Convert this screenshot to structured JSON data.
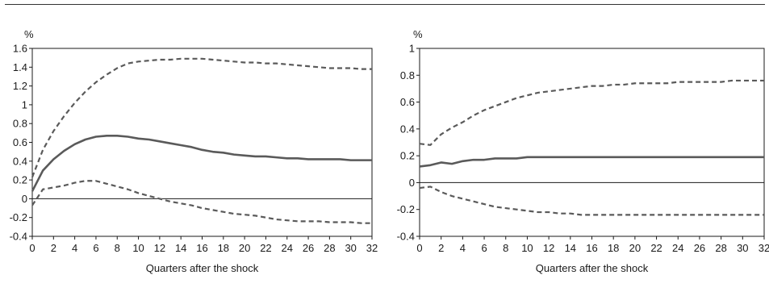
{
  "chart_data": [
    {
      "type": "line",
      "title": "",
      "unit": "%",
      "xlabel": "Quarters after the shock",
      "ylabel": "",
      "xlim": [
        0,
        32
      ],
      "ylim": [
        -0.4,
        1.6
      ],
      "xticks": [
        0,
        2,
        4,
        6,
        8,
        10,
        12,
        14,
        16,
        18,
        20,
        22,
        24,
        26,
        28,
        30,
        32
      ],
      "yticks": [
        -0.4,
        -0.2,
        0,
        0.2,
        0.4,
        0.6,
        0.8,
        1,
        1.2,
        1.4,
        1.6
      ],
      "ytick_labels": [
        "-0.4",
        "-0.2",
        "0",
        "0.2",
        "0.4",
        "0.6",
        "0.8",
        "1",
        "1.2",
        "1.4",
        "1.6"
      ],
      "zero_line": true,
      "grid": false,
      "x": [
        0,
        1,
        2,
        3,
        4,
        5,
        6,
        7,
        8,
        9,
        10,
        11,
        12,
        13,
        14,
        15,
        16,
        17,
        18,
        19,
        20,
        21,
        22,
        23,
        24,
        25,
        26,
        27,
        28,
        29,
        30,
        31,
        32
      ],
      "series": [
        {
          "style": "dashed",
          "values": [
            0.23,
            0.52,
            0.72,
            0.88,
            1.02,
            1.14,
            1.24,
            1.32,
            1.39,
            1.44,
            1.46,
            1.47,
            1.48,
            1.48,
            1.49,
            1.49,
            1.49,
            1.48,
            1.47,
            1.46,
            1.45,
            1.45,
            1.44,
            1.44,
            1.43,
            1.42,
            1.41,
            1.4,
            1.39,
            1.39,
            1.39,
            1.38,
            1.38
          ]
        },
        {
          "style": "solid",
          "values": [
            0.08,
            0.3,
            0.42,
            0.51,
            0.58,
            0.63,
            0.66,
            0.67,
            0.67,
            0.66,
            0.64,
            0.63,
            0.61,
            0.59,
            0.57,
            0.55,
            0.52,
            0.5,
            0.49,
            0.47,
            0.46,
            0.45,
            0.45,
            0.44,
            0.43,
            0.43,
            0.42,
            0.42,
            0.42,
            0.42,
            0.41,
            0.41,
            0.41
          ]
        },
        {
          "style": "dashed",
          "values": [
            -0.07,
            0.1,
            0.12,
            0.14,
            0.17,
            0.19,
            0.19,
            0.16,
            0.13,
            0.1,
            0.06,
            0.03,
            0.0,
            -0.03,
            -0.05,
            -0.07,
            -0.1,
            -0.12,
            -0.14,
            -0.16,
            -0.17,
            -0.18,
            -0.2,
            -0.22,
            -0.23,
            -0.24,
            -0.24,
            -0.24,
            -0.25,
            -0.25,
            -0.25,
            -0.26,
            -0.26
          ]
        }
      ]
    },
    {
      "type": "line",
      "title": "",
      "unit": "%",
      "xlabel": "Quarters after the shock",
      "ylabel": "",
      "xlim": [
        0,
        32
      ],
      "ylim": [
        -0.4,
        1
      ],
      "xticks": [
        0,
        2,
        4,
        6,
        8,
        10,
        12,
        14,
        16,
        18,
        20,
        22,
        24,
        26,
        28,
        30,
        32
      ],
      "yticks": [
        -0.4,
        -0.2,
        0,
        0.2,
        0.4,
        0.6,
        0.8,
        1
      ],
      "ytick_labels": [
        "-0.4",
        "-0.2",
        "0",
        "0.2",
        "0.4",
        "0.6",
        "0.8",
        "1"
      ],
      "zero_line": true,
      "grid": false,
      "x": [
        0,
        1,
        2,
        3,
        4,
        5,
        6,
        7,
        8,
        9,
        10,
        11,
        12,
        13,
        14,
        15,
        16,
        17,
        18,
        19,
        20,
        21,
        22,
        23,
        24,
        25,
        26,
        27,
        28,
        29,
        30,
        31,
        32
      ],
      "series": [
        {
          "style": "dashed",
          "values": [
            0.29,
            0.28,
            0.36,
            0.41,
            0.45,
            0.5,
            0.54,
            0.57,
            0.6,
            0.63,
            0.65,
            0.67,
            0.68,
            0.69,
            0.7,
            0.71,
            0.72,
            0.72,
            0.73,
            0.73,
            0.74,
            0.74,
            0.74,
            0.74,
            0.75,
            0.75,
            0.75,
            0.75,
            0.75,
            0.76,
            0.76,
            0.76,
            0.76
          ]
        },
        {
          "style": "solid",
          "values": [
            0.12,
            0.13,
            0.15,
            0.14,
            0.16,
            0.17,
            0.17,
            0.18,
            0.18,
            0.18,
            0.19,
            0.19,
            0.19,
            0.19,
            0.19,
            0.19,
            0.19,
            0.19,
            0.19,
            0.19,
            0.19,
            0.19,
            0.19,
            0.19,
            0.19,
            0.19,
            0.19,
            0.19,
            0.19,
            0.19,
            0.19,
            0.19,
            0.19
          ]
        },
        {
          "style": "dashed",
          "values": [
            -0.04,
            -0.03,
            -0.07,
            -0.1,
            -0.12,
            -0.14,
            -0.16,
            -0.18,
            -0.19,
            -0.2,
            -0.21,
            -0.22,
            -0.22,
            -0.23,
            -0.23,
            -0.24,
            -0.24,
            -0.24,
            -0.24,
            -0.24,
            -0.24,
            -0.24,
            -0.24,
            -0.24,
            -0.24,
            -0.24,
            -0.24,
            -0.24,
            -0.24,
            -0.24,
            -0.24,
            -0.24,
            -0.24
          ]
        }
      ]
    }
  ],
  "colors": {
    "line": "#5a5a5a",
    "axis": "#1a1a1a",
    "zero": "#1a1a1a"
  }
}
